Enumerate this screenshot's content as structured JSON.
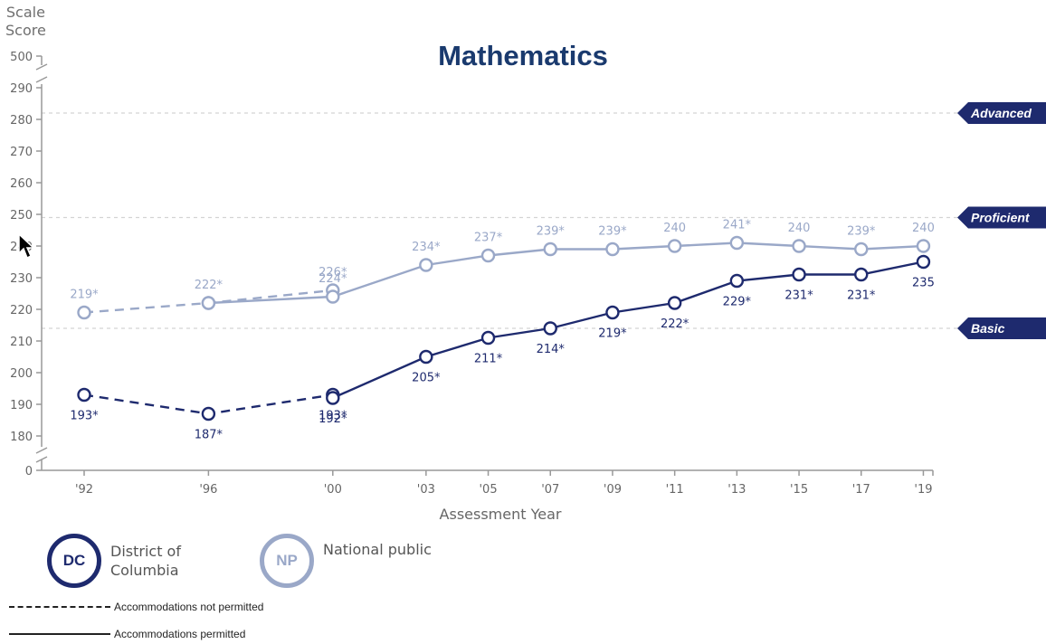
{
  "chart_data": {
    "type": "line",
    "title": "Mathematics",
    "ylabel_lines": [
      "Scale",
      "Score"
    ],
    "xlabel": "Assessment Year",
    "categories": [
      "'92",
      "'96",
      "'00",
      "'03",
      "'05",
      "'07",
      "'09",
      "'11",
      "'13",
      "'15",
      "'17",
      "'19"
    ],
    "y_ticks": [
      0,
      180,
      190,
      200,
      210,
      220,
      230,
      240,
      250,
      260,
      270,
      280,
      290,
      500
    ],
    "ylim_displayed": [
      180,
      290
    ],
    "axis_breaks": [
      "0-180",
      "290-500"
    ],
    "achievement_levels": [
      {
        "name": "Advanced",
        "value": 282
      },
      {
        "name": "Proficient",
        "value": 249
      },
      {
        "name": "Basic",
        "value": 214
      }
    ],
    "series": [
      {
        "name": "National public",
        "code": "NP",
        "color": "#9aa8c8",
        "not_permitted": [
          {
            "x": "'92",
            "y": 219,
            "label": "219*"
          },
          {
            "x": "'96",
            "y": 222,
            "label": "222*"
          },
          {
            "x": "'00",
            "y": 226,
            "label": "226*"
          }
        ],
        "permitted": [
          {
            "x": "'96",
            "y": 222,
            "label": ""
          },
          {
            "x": "'00",
            "y": 224,
            "label": "224*"
          },
          {
            "x": "'03",
            "y": 234,
            "label": "234*"
          },
          {
            "x": "'05",
            "y": 237,
            "label": "237*"
          },
          {
            "x": "'07",
            "y": 239,
            "label": "239*"
          },
          {
            "x": "'09",
            "y": 239,
            "label": "239*"
          },
          {
            "x": "'11",
            "y": 240,
            "label": "240"
          },
          {
            "x": "'13",
            "y": 241,
            "label": "241*"
          },
          {
            "x": "'15",
            "y": 240,
            "label": "240"
          },
          {
            "x": "'17",
            "y": 239,
            "label": "239*"
          },
          {
            "x": "'19",
            "y": 240,
            "label": "240"
          }
        ]
      },
      {
        "name": "District of Columbia",
        "code": "DC",
        "color": "#1e2a6e",
        "not_permitted": [
          {
            "x": "'92",
            "y": 193,
            "label": "193*"
          },
          {
            "x": "'96",
            "y": 187,
            "label": "187*"
          },
          {
            "x": "'00",
            "y": 193,
            "label": "193*"
          }
        ],
        "permitted": [
          {
            "x": "'00",
            "y": 192,
            "label": "192*"
          },
          {
            "x": "'03",
            "y": 205,
            "label": "205*"
          },
          {
            "x": "'05",
            "y": 211,
            "label": "211*"
          },
          {
            "x": "'07",
            "y": 214,
            "label": "214*"
          },
          {
            "x": "'09",
            "y": 219,
            "label": "219*"
          },
          {
            "x": "'11",
            "y": 222,
            "label": "222*"
          },
          {
            "x": "'13",
            "y": 229,
            "label": "229*"
          },
          {
            "x": "'15",
            "y": 231,
            "label": "231*"
          },
          {
            "x": "'17",
            "y": 231,
            "label": "231*"
          },
          {
            "x": "'19",
            "y": 235,
            "label": "235"
          }
        ]
      }
    ]
  },
  "legend": {
    "dc": {
      "code": "DC",
      "label_line1": "District of",
      "label_line2": "Columbia"
    },
    "np": {
      "code": "NP",
      "label": "National public"
    },
    "not_permitted_label": "Accommodations not permitted",
    "permitted_label": "Accommodations permitted"
  },
  "colors": {
    "dc": "#1e2a6e",
    "np": "#9aa8c8",
    "title": "#1a3a6e",
    "level_flag": "#1e2a6e"
  }
}
